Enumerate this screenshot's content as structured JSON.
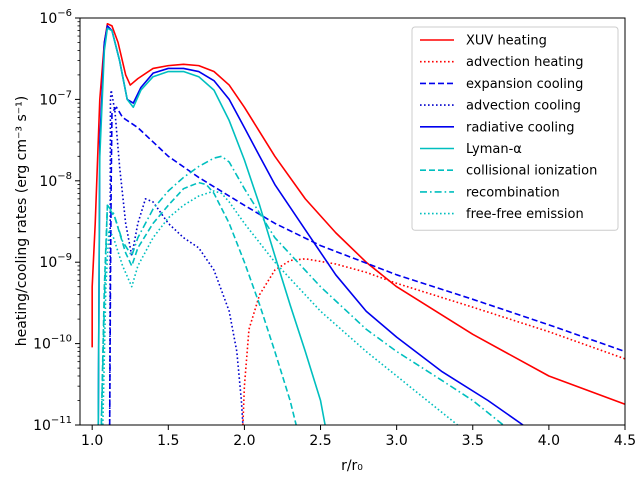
{
  "chart_data": {
    "type": "line",
    "xlabel": "r/r₀",
    "ylabel": "heating/cooling rates (erg cm⁻³ s⁻¹)",
    "xlim": [
      0.92,
      4.5
    ],
    "ylim": [
      1e-11,
      1e-06
    ],
    "yscale": "log",
    "x_ticks": [
      1.0,
      1.5,
      2.0,
      2.5,
      3.0,
      3.5,
      4.0,
      4.5
    ],
    "x_tick_labels": [
      "1.0",
      "1.5",
      "2.0",
      "2.5",
      "3.0",
      "3.5",
      "4.0",
      "4.5"
    ],
    "y_ticks": [
      1e-11,
      1e-10,
      1e-09,
      1e-08,
      1e-07,
      1e-06
    ],
    "y_tick_labels": [
      {
        "base": "10",
        "exp": "−11"
      },
      {
        "base": "10",
        "exp": "−10"
      },
      {
        "base": "10",
        "exp": "−9"
      },
      {
        "base": "10",
        "exp": "−8"
      },
      {
        "base": "10",
        "exp": "−7"
      },
      {
        "base": "10",
        "exp": "−6"
      }
    ],
    "grid": false,
    "legend_position": "top-right",
    "series": [
      {
        "name": "XUV heating",
        "color": "#ff0000",
        "dash": "solid",
        "points": [
          [
            1.0,
            9e-11
          ],
          [
            1.0,
            5e-10
          ],
          [
            1.02,
            3e-09
          ],
          [
            1.05,
            1e-07
          ],
          [
            1.08,
            5e-07
          ],
          [
            1.1,
            8.5e-07
          ],
          [
            1.13,
            8e-07
          ],
          [
            1.17,
            5e-07
          ],
          [
            1.22,
            2e-07
          ],
          [
            1.25,
            1.5e-07
          ],
          [
            1.3,
            1.8e-07
          ],
          [
            1.4,
            2.4e-07
          ],
          [
            1.5,
            2.6e-07
          ],
          [
            1.6,
            2.7e-07
          ],
          [
            1.7,
            2.6e-07
          ],
          [
            1.8,
            2.2e-07
          ],
          [
            1.9,
            1.5e-07
          ],
          [
            2.0,
            8e-08
          ],
          [
            2.1,
            4e-08
          ],
          [
            2.2,
            2e-08
          ],
          [
            2.4,
            6e-09
          ],
          [
            2.6,
            2.3e-09
          ],
          [
            2.8,
            1e-09
          ],
          [
            3.0,
            5e-10
          ],
          [
            3.5,
            1.3e-10
          ],
          [
            4.0,
            4e-11
          ],
          [
            4.5,
            1.8e-11
          ]
        ]
      },
      {
        "name": "advection heating",
        "color": "#ff0000",
        "dash": "dotted",
        "points": [
          [
            1.99,
            1e-11
          ],
          [
            2.0,
            3e-11
          ],
          [
            2.03,
            1.5e-10
          ],
          [
            2.1,
            4e-10
          ],
          [
            2.2,
            8e-10
          ],
          [
            2.3,
            1.05e-09
          ],
          [
            2.4,
            1.1e-09
          ],
          [
            2.6,
            9.5e-10
          ],
          [
            2.8,
            7.5e-10
          ],
          [
            3.0,
            5.5e-10
          ],
          [
            3.5,
            2.8e-10
          ],
          [
            4.0,
            1.4e-10
          ],
          [
            4.5,
            6.5e-11
          ]
        ]
      },
      {
        "name": "expansion cooling",
        "color": "#0000ee",
        "dash": "dashed",
        "points": [
          [
            1.115,
            1e-11
          ],
          [
            1.12,
            5e-10
          ],
          [
            1.125,
            1e-08
          ],
          [
            1.13,
            7e-08
          ],
          [
            1.16,
            8e-08
          ],
          [
            1.2,
            6e-08
          ],
          [
            1.3,
            4.5e-08
          ],
          [
            1.4,
            3e-08
          ],
          [
            1.5,
            2e-08
          ],
          [
            1.7,
            1.1e-08
          ],
          [
            2.0,
            5e-09
          ],
          [
            2.2,
            3e-09
          ],
          [
            2.5,
            1.6e-09
          ],
          [
            3.0,
            7e-10
          ],
          [
            3.5,
            3.5e-10
          ],
          [
            4.0,
            1.7e-10
          ],
          [
            4.5,
            8e-11
          ]
        ]
      },
      {
        "name": "advection cooling",
        "color": "#0000cc",
        "dash": "dotted",
        "points": [
          [
            1.115,
            1e-11
          ],
          [
            1.118,
            1e-09
          ],
          [
            1.12,
            1e-07
          ],
          [
            1.125,
            1.3e-07
          ],
          [
            1.15,
            7e-08
          ],
          [
            1.18,
            1.5e-08
          ],
          [
            1.22,
            3e-09
          ],
          [
            1.26,
            1.2e-09
          ],
          [
            1.3,
            3e-09
          ],
          [
            1.35,
            6e-09
          ],
          [
            1.4,
            5.5e-09
          ],
          [
            1.5,
            3e-09
          ],
          [
            1.6,
            2e-09
          ],
          [
            1.7,
            1.5e-09
          ],
          [
            1.8,
            8e-10
          ],
          [
            1.9,
            2.5e-10
          ],
          [
            1.95,
            8e-11
          ],
          [
            1.98,
            2e-11
          ],
          [
            1.99,
            1e-11
          ]
        ]
      },
      {
        "name": "radiative cooling",
        "color": "#0000ee",
        "dash": "solid",
        "points": [
          [
            1.04,
            1e-11
          ],
          [
            1.05,
            3e-08
          ],
          [
            1.08,
            5e-07
          ],
          [
            1.1,
            8e-07
          ],
          [
            1.13,
            7e-07
          ],
          [
            1.18,
            3e-07
          ],
          [
            1.23,
            1e-07
          ],
          [
            1.27,
            9e-08
          ],
          [
            1.32,
            1.4e-07
          ],
          [
            1.4,
            2.1e-07
          ],
          [
            1.5,
            2.4e-07
          ],
          [
            1.6,
            2.4e-07
          ],
          [
            1.7,
            2.2e-07
          ],
          [
            1.8,
            1.7e-07
          ],
          [
            1.9,
            1e-07
          ],
          [
            2.0,
            4.5e-08
          ],
          [
            2.1,
            2e-08
          ],
          [
            2.2,
            9e-09
          ],
          [
            2.4,
            2.5e-09
          ],
          [
            2.6,
            7e-10
          ],
          [
            2.8,
            2.5e-10
          ],
          [
            3.0,
            1.2e-10
          ],
          [
            3.3,
            4.5e-11
          ],
          [
            3.6,
            2e-11
          ],
          [
            3.83,
            1e-11
          ]
        ]
      },
      {
        "name": "Lyman-α",
        "color": "#00bfbf",
        "dash": "solid",
        "points": [
          [
            1.04,
            1e-11
          ],
          [
            1.05,
            2e-08
          ],
          [
            1.08,
            4e-07
          ],
          [
            1.1,
            7.5e-07
          ],
          [
            1.13,
            7e-07
          ],
          [
            1.18,
            3e-07
          ],
          [
            1.23,
            1e-07
          ],
          [
            1.27,
            8e-08
          ],
          [
            1.32,
            1.3e-07
          ],
          [
            1.4,
            1.9e-07
          ],
          [
            1.5,
            2.2e-07
          ],
          [
            1.6,
            2.2e-07
          ],
          [
            1.7,
            1.9e-07
          ],
          [
            1.8,
            1.3e-07
          ],
          [
            1.9,
            5.5e-08
          ],
          [
            2.0,
            1.8e-08
          ],
          [
            2.1,
            5e-09
          ],
          [
            2.2,
            1.2e-09
          ],
          [
            2.3,
            3e-10
          ],
          [
            2.4,
            8e-11
          ],
          [
            2.5,
            2e-11
          ],
          [
            2.53,
            1e-11
          ]
        ]
      },
      {
        "name": "collisional ionization",
        "color": "#00bfbf",
        "dash": "dashed",
        "points": [
          [
            1.06,
            1e-11
          ],
          [
            1.08,
            5e-10
          ],
          [
            1.1,
            5e-09
          ],
          [
            1.15,
            3.5e-09
          ],
          [
            1.22,
            1.3e-09
          ],
          [
            1.26,
            9e-10
          ],
          [
            1.3,
            1.5e-09
          ],
          [
            1.4,
            3e-09
          ],
          [
            1.5,
            5e-09
          ],
          [
            1.6,
            8e-09
          ],
          [
            1.7,
            9.5e-09
          ],
          [
            1.75,
            9e-09
          ],
          [
            1.8,
            7e-09
          ],
          [
            1.9,
            3e-09
          ],
          [
            2.0,
            1e-09
          ],
          [
            2.1,
            3e-10
          ],
          [
            2.2,
            8e-11
          ],
          [
            2.3,
            2e-11
          ],
          [
            2.34,
            1e-11
          ]
        ]
      },
      {
        "name": "recombination",
        "color": "#00bfbf",
        "dash": "dashdot",
        "points": [
          [
            1.06,
            1e-11
          ],
          [
            1.08,
            3e-10
          ],
          [
            1.1,
            5e-09
          ],
          [
            1.14,
            4e-09
          ],
          [
            1.2,
            1.8e-09
          ],
          [
            1.26,
            1.2e-09
          ],
          [
            1.3,
            2e-09
          ],
          [
            1.4,
            4.5e-09
          ],
          [
            1.5,
            7.5e-09
          ],
          [
            1.6,
            1.1e-08
          ],
          [
            1.7,
            1.5e-08
          ],
          [
            1.8,
            1.9e-08
          ],
          [
            1.85,
            2e-08
          ],
          [
            1.9,
            1.7e-08
          ],
          [
            2.0,
            8e-09
          ],
          [
            2.2,
            2e-09
          ],
          [
            2.5,
            5e-10
          ],
          [
            2.8,
            1.5e-10
          ],
          [
            3.0,
            8e-11
          ],
          [
            3.3,
            3.5e-11
          ],
          [
            3.5,
            2e-11
          ],
          [
            3.7,
            1e-11
          ]
        ]
      },
      {
        "name": "free-free emission",
        "color": "#00bfbf",
        "dash": "dotted",
        "points": [
          [
            1.07,
            1e-11
          ],
          [
            1.09,
            5e-10
          ],
          [
            1.11,
            2.5e-09
          ],
          [
            1.14,
            2e-09
          ],
          [
            1.2,
            9e-10
          ],
          [
            1.26,
            5e-10
          ],
          [
            1.3,
            9e-10
          ],
          [
            1.4,
            2e-09
          ],
          [
            1.5,
            3.5e-09
          ],
          [
            1.6,
            5e-09
          ],
          [
            1.7,
            6.5e-09
          ],
          [
            1.8,
            7.5e-09
          ],
          [
            1.85,
            7e-09
          ],
          [
            1.9,
            5.5e-09
          ],
          [
            2.0,
            3e-09
          ],
          [
            2.2,
            1e-09
          ],
          [
            2.5,
            2.5e-10
          ],
          [
            2.8,
            8e-11
          ],
          [
            3.0,
            4e-11
          ],
          [
            3.2,
            2e-11
          ],
          [
            3.4,
            1e-11
          ]
        ]
      }
    ]
  }
}
